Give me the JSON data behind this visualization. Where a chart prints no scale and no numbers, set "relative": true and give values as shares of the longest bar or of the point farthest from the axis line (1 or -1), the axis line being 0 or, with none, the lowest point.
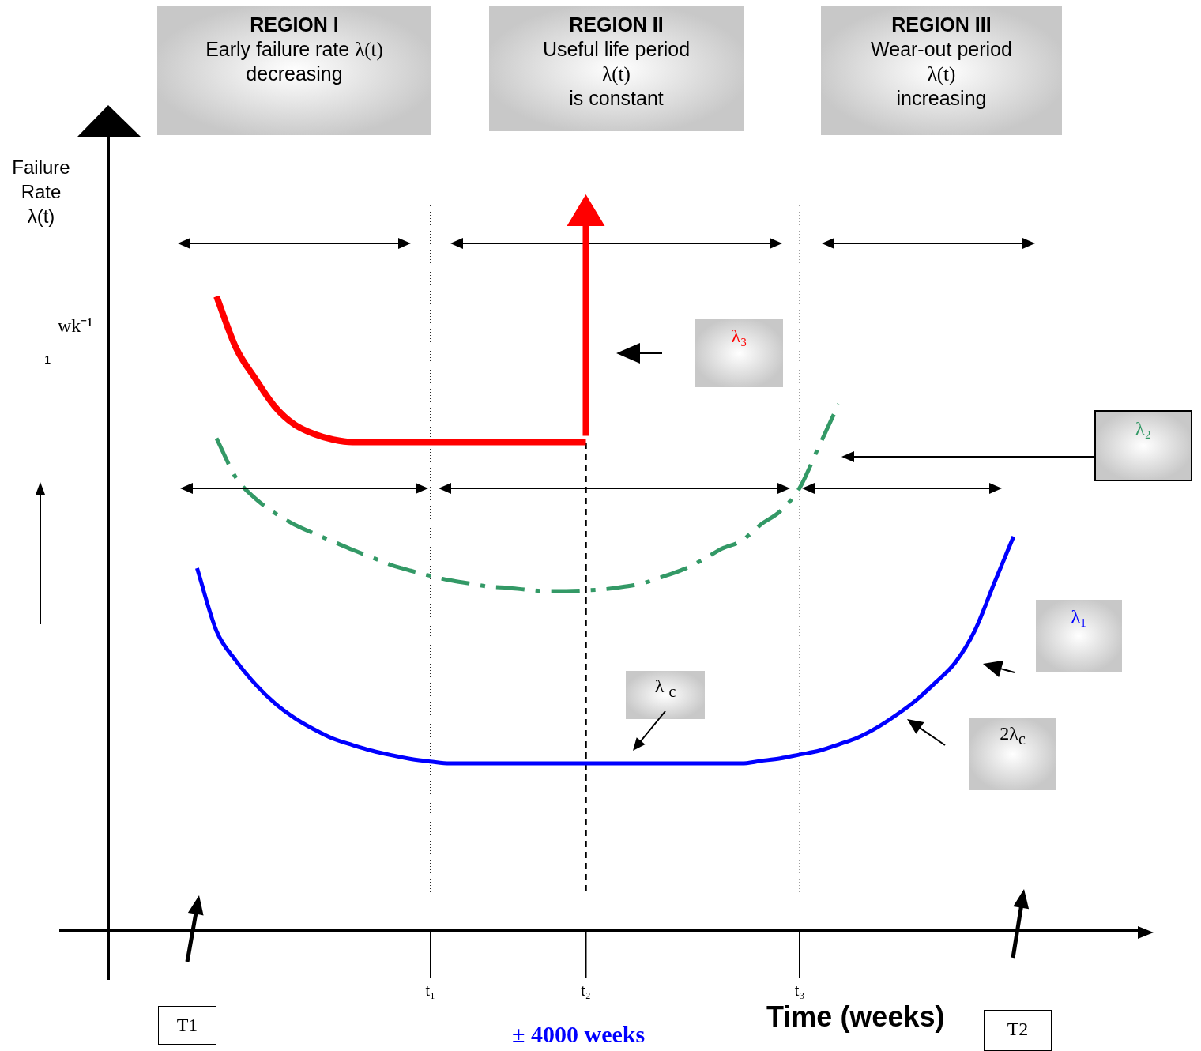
{
  "chart_data": {
    "type": "line",
    "relative": true,
    "ylabel": "Failure Rate λ(t)",
    "xlabel": "Time (weeks)",
    "marker": "none",
    "categories": [
      null,
      null,
      null,
      null,
      null,
      null,
      null,
      null,
      null,
      null,
      null,
      null,
      null,
      null,
      null,
      null,
      "t₁",
      null,
      null,
      null,
      null,
      null,
      null,
      null,
      "t₂",
      null,
      null,
      null,
      null,
      null,
      null,
      null,
      null,
      null,
      null,
      "t₃",
      null,
      null,
      null,
      null,
      null,
      null,
      null,
      null,
      null,
      null,
      null,
      null,
      null,
      null,
      null,
      null,
      null,
      null
    ],
    "series": [
      {
        "name": "λ₃",
        "color": "#ff0000",
        "line_style": "solid",
        "values": [
          null,
          null,
          null,
          null,
          null,
          1.0,
          0.919,
          0.87,
          0.826,
          0.798,
          0.783,
          0.774,
          0.77,
          0.77,
          0.77,
          0.77,
          0.77,
          0.77,
          0.77,
          0.77,
          0.77,
          0.77,
          0.77,
          0.77,
          0.77,
          null,
          null,
          null,
          null,
          null,
          null,
          null,
          null,
          null,
          null,
          null,
          null,
          null,
          null,
          null,
          null,
          null,
          null,
          null,
          null,
          null,
          null,
          null,
          null,
          null,
          null,
          null,
          null,
          null
        ]
      },
      {
        "name": "λ₂",
        "color": "#339966",
        "line_style": "dashed",
        "values": [
          null,
          null,
          null,
          null,
          null,
          0.776,
          0.714,
          0.681,
          0.658,
          0.64,
          0.626,
          0.613,
          0.6,
          0.588,
          0.576,
          0.567,
          0.559,
          0.552,
          0.547,
          0.542,
          0.54,
          0.537,
          0.535,
          0.535,
          0.536,
          0.538,
          0.542,
          0.548,
          0.558,
          0.569,
          0.584,
          0.602,
          0.614,
          0.64,
          0.661,
          0.698,
          0.764,
          0.83,
          null,
          null,
          null,
          null,
          null,
          null,
          null,
          null,
          null,
          null,
          null,
          null,
          null,
          null,
          null,
          null
        ]
      },
      {
        "name": "λ₁",
        "color": "#0000ff",
        "line_style": "solid",
        "values": [
          null,
          null,
          null,
          null,
          0.571,
          0.472,
          0.425,
          0.388,
          0.358,
          0.335,
          0.317,
          0.302,
          0.292,
          0.283,
          0.276,
          0.27,
          0.266,
          0.263,
          0.263,
          0.263,
          0.263,
          0.263,
          0.263,
          0.263,
          0.263,
          0.263,
          0.263,
          0.263,
          0.263,
          0.263,
          0.263,
          0.263,
          0.263,
          0.267,
          0.271,
          0.277,
          0.283,
          0.293,
          0.304,
          0.32,
          0.34,
          0.363,
          0.391,
          0.422,
          0.472,
          0.547,
          0.621,
          null,
          null,
          null,
          null,
          null,
          null,
          null
        ]
      }
    ],
    "ref_lines": [
      {
        "axis": "x",
        "value": "t₁",
        "line_style": "dotted"
      },
      {
        "axis": "x",
        "value": "t₂",
        "line_style": "dashed"
      },
      {
        "axis": "x",
        "value": "t₃",
        "line_style": "dotted"
      }
    ],
    "annotations": [
      "REGION I\nEarly failure rate λ(t)\ndecreasing",
      "REGION II\nUseful life period\nλ(t)\nis constant",
      "REGION III\nWear-out period\nλ(t)\nincreasing",
      "wk⁻¹\n1",
      "λ $_{c}$",
      "2λ$_{c}$",
      "± 4000 weeks",
      "T1",
      "T2"
    ]
  }
}
